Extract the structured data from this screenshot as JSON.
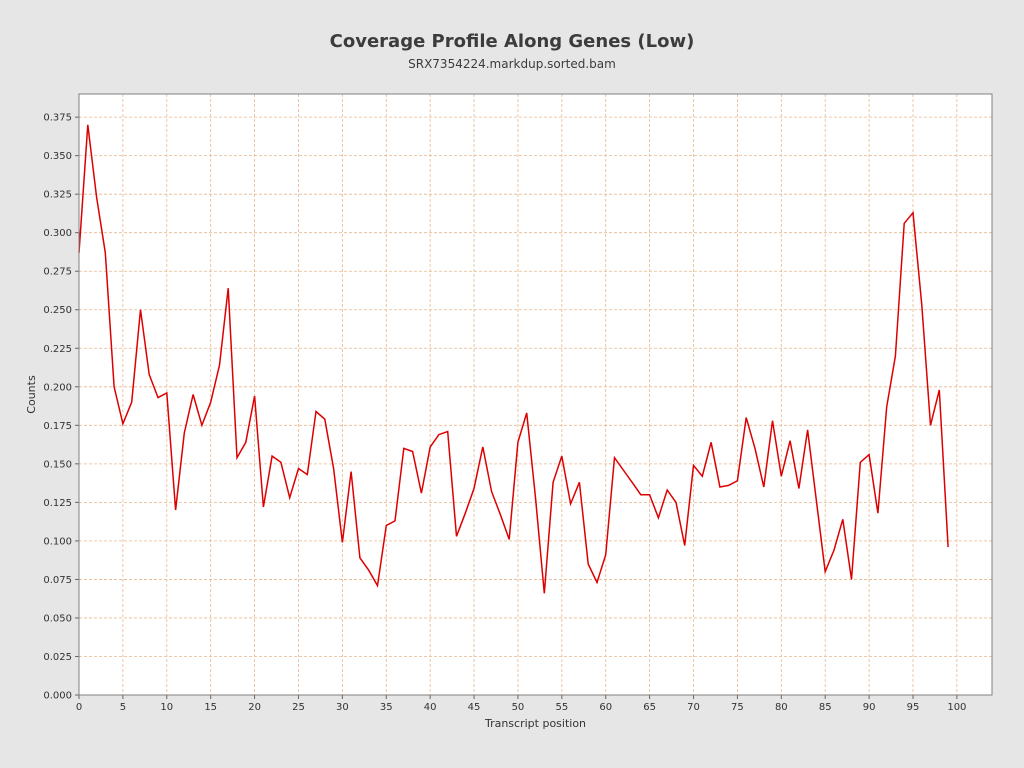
{
  "chart_data": {
    "type": "line",
    "title": "Coverage Profile Along Genes (Low)",
    "subtitle": "SRX7354224.markdup.sorted.bam",
    "xlabel": "Transcript position",
    "ylabel": "Counts",
    "xlim": [
      0,
      104
    ],
    "ylim": [
      0,
      0.39
    ],
    "xticks": [
      0,
      5,
      10,
      15,
      20,
      25,
      30,
      35,
      40,
      45,
      50,
      55,
      60,
      65,
      70,
      75,
      80,
      85,
      90,
      95,
      100
    ],
    "yticks": [
      0.0,
      0.025,
      0.05,
      0.075,
      0.1,
      0.125,
      0.15,
      0.175,
      0.2,
      0.225,
      0.25,
      0.275,
      0.3,
      0.325,
      0.35,
      0.375
    ],
    "grid": true,
    "legend": "none",
    "colors": {
      "line": "#dd0000",
      "grid": "#e8b88f",
      "plot_bg": "#ffffff",
      "page_bg": "#e6e6e6"
    },
    "series": [
      {
        "x": [
          0,
          1,
          2,
          3,
          4,
          5,
          6,
          7,
          8,
          9,
          10,
          11,
          12,
          13,
          14,
          15,
          16,
          17,
          18,
          19,
          20,
          21,
          22,
          23,
          24,
          25,
          26,
          27,
          28,
          29,
          30,
          31,
          32,
          33,
          34,
          35,
          36,
          37,
          38,
          39,
          40,
          41,
          42,
          43,
          44,
          45,
          46,
          47,
          48,
          49,
          50,
          51,
          52,
          53,
          54,
          55,
          56,
          57,
          58,
          59,
          60,
          61,
          62,
          63,
          64,
          65,
          66,
          67,
          68,
          69,
          70,
          71,
          72,
          73,
          74,
          75,
          76,
          77,
          78,
          79,
          80,
          81,
          82,
          83,
          84,
          85,
          86,
          87,
          88,
          89,
          90,
          91,
          92,
          93,
          94,
          95,
          96,
          97,
          98,
          99
        ],
        "values": [
          0.287,
          0.37,
          0.323,
          0.287,
          0.2,
          0.176,
          0.19,
          0.25,
          0.208,
          0.193,
          0.196,
          0.12,
          0.17,
          0.195,
          0.175,
          0.19,
          0.214,
          0.264,
          0.154,
          0.164,
          0.194,
          0.122,
          0.155,
          0.151,
          0.128,
          0.147,
          0.143,
          0.184,
          0.179,
          0.147,
          0.099,
          0.145,
          0.089,
          0.081,
          0.071,
          0.11,
          0.113,
          0.16,
          0.158,
          0.131,
          0.161,
          0.169,
          0.171,
          0.103,
          0.118,
          0.134,
          0.161,
          0.132,
          0.117,
          0.101,
          0.164,
          0.183,
          0.128,
          0.066,
          0.138,
          0.155,
          0.124,
          0.138,
          0.085,
          0.073,
          0.091,
          0.154,
          0.146,
          0.138,
          0.13,
          0.13,
          0.115,
          0.133,
          0.125,
          0.097,
          0.149,
          0.142,
          0.164,
          0.135,
          0.136,
          0.139,
          0.18,
          0.16,
          0.135,
          0.178,
          0.142,
          0.165,
          0.134,
          0.172,
          0.126,
          0.08,
          0.094,
          0.114,
          0.075,
          0.151,
          0.156,
          0.118,
          0.187,
          0.22,
          0.306,
          0.313,
          0.253,
          0.175,
          0.198,
          0.096
        ]
      }
    ]
  }
}
